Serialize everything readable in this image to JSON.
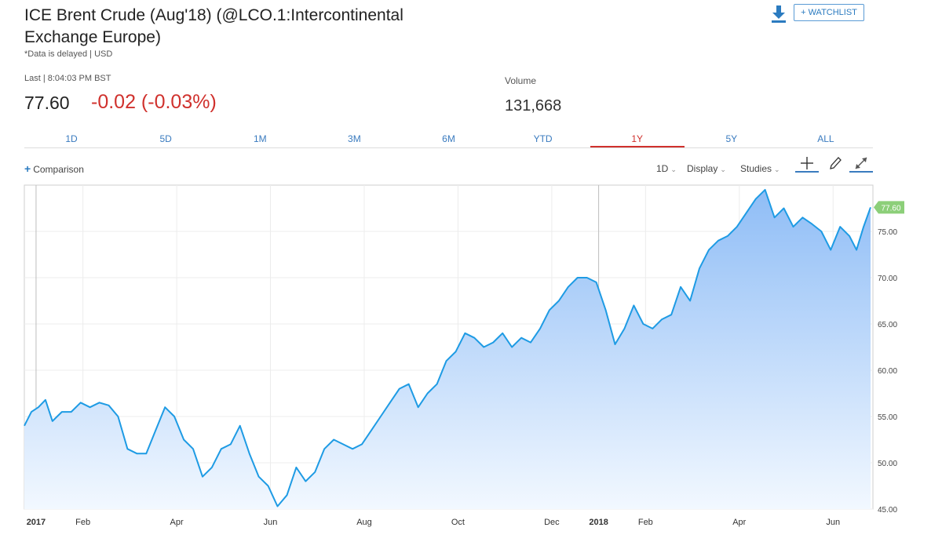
{
  "header": {
    "title": "ICE Brent Crude (Aug'18) (@LCO.1:Intercontinental Exchange Europe)",
    "delay_note": "*Data is delayed | USD",
    "last_label": "Last | 8:04:03 PM BST",
    "price": "77.60",
    "change": "-0.02 (-0.03%)",
    "volume_label": "Volume",
    "volume_value": "131,668",
    "watchlist_label": "+ WATCHLIST"
  },
  "tabs": [
    {
      "label": "1D",
      "active": false
    },
    {
      "label": "5D",
      "active": false
    },
    {
      "label": "1M",
      "active": false
    },
    {
      "label": "3M",
      "active": false
    },
    {
      "label": "6M",
      "active": false
    },
    {
      "label": "YTD",
      "active": false
    },
    {
      "label": "1Y",
      "active": true
    },
    {
      "label": "5Y",
      "active": false
    },
    {
      "label": "ALL",
      "active": false
    }
  ],
  "toolbar": {
    "comparison_label": "Comparison",
    "interval_label": "1D",
    "display_label": "Display",
    "studies_label": "Studies",
    "crosshair_icon": "crosshair-icon",
    "draw_icon": "pencil-icon",
    "expand_icon": "expand-icon"
  },
  "colors": {
    "line": "#1e9be4",
    "fill_top": "#8fbdf6",
    "fill_bottom": "#f2f8ff",
    "negative": "#d0312d",
    "tab_blue": "#3a7bbf",
    "last_badge": "#8ccf79"
  },
  "chart_data": {
    "type": "area",
    "title": "ICE Brent Crude (Aug'18)",
    "ylim": [
      45,
      80
    ],
    "yticks": [
      "45.00",
      "50.00",
      "55.00",
      "60.00",
      "65.00",
      "70.00",
      "75.00"
    ],
    "xticks": [
      {
        "label": "2017",
        "t": 0.25,
        "bold": true
      },
      {
        "label": "Feb",
        "t": 1.25,
        "bold": false
      },
      {
        "label": "Apr",
        "t": 3.25,
        "bold": false
      },
      {
        "label": "Jun",
        "t": 5.25,
        "bold": false
      },
      {
        "label": "Aug",
        "t": 7.25,
        "bold": false
      },
      {
        "label": "Oct",
        "t": 9.25,
        "bold": false
      },
      {
        "label": "Dec",
        "t": 11.25,
        "bold": false
      },
      {
        "label": "2018",
        "t": 12.25,
        "bold": true
      },
      {
        "label": "Feb",
        "t": 13.25,
        "bold": false
      },
      {
        "label": "Apr",
        "t": 15.25,
        "bold": false
      },
      {
        "label": "Jun",
        "t": 17.25,
        "bold": false
      }
    ],
    "last_value": "77.60",
    "t_range": [
      0,
      18.1
    ],
    "series": [
      {
        "name": "LCO.1",
        "t": [
          0,
          0.15,
          0.3,
          0.45,
          0.6,
          0.8,
          1.0,
          1.2,
          1.4,
          1.6,
          1.8,
          2.0,
          2.2,
          2.4,
          2.6,
          2.8,
          3.0,
          3.2,
          3.4,
          3.6,
          3.8,
          4.0,
          4.2,
          4.4,
          4.6,
          4.8,
          5.0,
          5.2,
          5.4,
          5.6,
          5.8,
          6.0,
          6.2,
          6.4,
          6.6,
          6.8,
          7.0,
          7.2,
          7.4,
          7.6,
          7.8,
          8.0,
          8.2,
          8.4,
          8.6,
          8.8,
          9.0,
          9.2,
          9.4,
          9.6,
          9.8,
          10.0,
          10.2,
          10.4,
          10.6,
          10.8,
          11.0,
          11.2,
          11.4,
          11.6,
          11.8,
          12.0,
          12.2,
          12.4,
          12.6,
          12.8,
          13.0,
          13.2,
          13.4,
          13.6,
          13.8,
          14.0,
          14.2,
          14.4,
          14.6,
          14.8,
          15.0,
          15.2,
          15.4,
          15.6,
          15.8,
          16.0,
          16.2,
          16.4,
          16.6,
          16.8,
          17.0,
          17.2,
          17.4,
          17.6,
          17.75,
          17.9,
          18.05
        ],
        "values": [
          54.0,
          55.5,
          56.0,
          56.8,
          54.5,
          55.5,
          55.5,
          56.5,
          56.0,
          56.5,
          56.2,
          55.0,
          51.5,
          51.0,
          51.0,
          53.5,
          56.0,
          55.0,
          52.5,
          51.5,
          48.5,
          49.5,
          51.5,
          52.0,
          54.0,
          51.0,
          48.5,
          47.5,
          45.3,
          46.5,
          49.5,
          48.0,
          49.0,
          51.5,
          52.5,
          52.0,
          51.5,
          52.0,
          53.5,
          55.0,
          56.5,
          58.0,
          58.5,
          56.0,
          57.5,
          58.5,
          61.0,
          62.0,
          64.0,
          63.5,
          62.5,
          63.0,
          64.0,
          62.5,
          63.5,
          63.0,
          64.5,
          66.5,
          67.5,
          69.0,
          70.0,
          70.0,
          69.5,
          66.5,
          62.8,
          64.5,
          67.0,
          65.0,
          64.5,
          65.5,
          66.0,
          69.0,
          67.5,
          71.0,
          73.0,
          74.0,
          74.5,
          75.5,
          77.0,
          78.5,
          79.5,
          76.5,
          77.5,
          75.5,
          76.5,
          75.8,
          75.0,
          73.0,
          75.5,
          74.5,
          73.0,
          75.5,
          77.6
        ]
      }
    ]
  }
}
